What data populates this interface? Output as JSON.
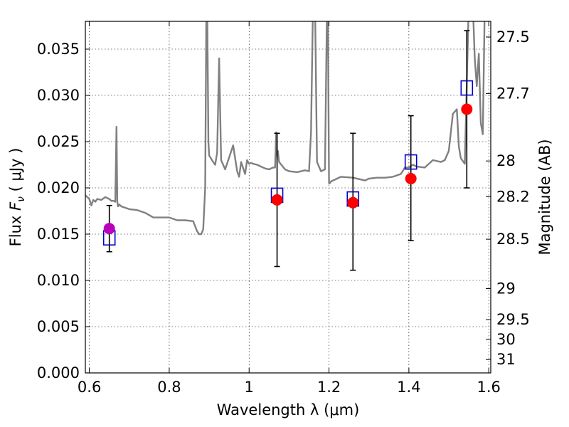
{
  "chart_data": {
    "type": "scatter",
    "xlabel": "Wavelength  λ (μm)",
    "ylabel": "Flux  F_ν  ( μJy )",
    "ylabel_parts": {
      "pre": "Flux  ",
      "sym": "F",
      "sub": "ν",
      "post": "  ( μJy )"
    },
    "y2label": "Magnitude (AB)",
    "xlim": [
      0.59,
      1.605
    ],
    "ylim": [
      0.0,
      0.038
    ],
    "grid": true,
    "x_ticks": [
      {
        "value": 0.6,
        "label": "0.6"
      },
      {
        "value": 0.8,
        "label": "0.8"
      },
      {
        "value": 1.0,
        "label": "1"
      },
      {
        "value": 1.2,
        "label": "1.2"
      },
      {
        "value": 1.4,
        "label": "1.4"
      },
      {
        "value": 1.6,
        "label": "1.6"
      }
    ],
    "y_ticks": [
      {
        "value": 0.0,
        "label": "0.000"
      },
      {
        "value": 0.005,
        "label": "0.005"
      },
      {
        "value": 0.01,
        "label": "0.010"
      },
      {
        "value": 0.015,
        "label": "0.015"
      },
      {
        "value": 0.02,
        "label": "0.020"
      },
      {
        "value": 0.025,
        "label": "0.025"
      },
      {
        "value": 0.03,
        "label": "0.030"
      },
      {
        "value": 0.035,
        "label": "0.035"
      }
    ],
    "y2_ticks": [
      {
        "mag": 27.5,
        "label": "27.5"
      },
      {
        "mag": 27.7,
        "label": "27.7"
      },
      {
        "mag": 28.0,
        "label": "28"
      },
      {
        "mag": 28.2,
        "label": "28.2"
      },
      {
        "mag": 28.5,
        "label": "28.5"
      },
      {
        "mag": 29.0,
        "label": "29"
      },
      {
        "mag": 29.5,
        "label": "29.5"
      },
      {
        "mag": 30.0,
        "label": "30"
      },
      {
        "mag": 31.0,
        "label": "31"
      }
    ],
    "spectrum": {
      "color": "#808080",
      "x": [
        0.59,
        0.6,
        0.605,
        0.61,
        0.615,
        0.62,
        0.63,
        0.64,
        0.65,
        0.655,
        0.66,
        0.665,
        0.668,
        0.67,
        0.672,
        0.675,
        0.68,
        0.7,
        0.72,
        0.74,
        0.76,
        0.78,
        0.8,
        0.82,
        0.84,
        0.86,
        0.87,
        0.875,
        0.88,
        0.885,
        0.89,
        0.893,
        0.895,
        0.898,
        0.9,
        0.91,
        0.915,
        0.92,
        0.925,
        0.93,
        0.94,
        0.96,
        0.97,
        0.975,
        0.98,
        0.99,
        0.995,
        1.0,
        1.005,
        1.01,
        1.02,
        1.03,
        1.04,
        1.05,
        1.06,
        1.065,
        1.068,
        1.07,
        1.072,
        1.075,
        1.09,
        1.1,
        1.12,
        1.14,
        1.15,
        1.155,
        1.16,
        1.165,
        1.17,
        1.18,
        1.19,
        1.195,
        1.197,
        1.2,
        1.202,
        1.205,
        1.21,
        1.23,
        1.26,
        1.29,
        1.3,
        1.32,
        1.34,
        1.36,
        1.38,
        1.39,
        1.4,
        1.41,
        1.42,
        1.44,
        1.46,
        1.48,
        1.49,
        1.5,
        1.51,
        1.52,
        1.525,
        1.53,
        1.54,
        1.55,
        1.555,
        1.56,
        1.565,
        1.57,
        1.575,
        1.58,
        1.585,
        1.59,
        1.595,
        1.6,
        1.605
      ],
      "y": [
        0.0192,
        0.0188,
        0.0181,
        0.0187,
        0.0185,
        0.0188,
        0.0187,
        0.019,
        0.0188,
        0.0186,
        0.0186,
        0.0185,
        0.0266,
        0.0185,
        0.018,
        0.0182,
        0.018,
        0.0177,
        0.0176,
        0.0173,
        0.0168,
        0.0168,
        0.0168,
        0.0165,
        0.0165,
        0.0164,
        0.0153,
        0.015,
        0.015,
        0.0155,
        0.02,
        0.04,
        0.04,
        0.025,
        0.0235,
        0.0228,
        0.0225,
        0.0238,
        0.034,
        0.023,
        0.022,
        0.0246,
        0.0218,
        0.0212,
        0.0228,
        0.0215,
        0.023,
        0.0226,
        0.0227,
        0.0226,
        0.0225,
        0.0223,
        0.0221,
        0.022,
        0.0222,
        0.0222,
        0.026,
        0.0235,
        0.024,
        0.0228,
        0.022,
        0.0218,
        0.0217,
        0.0219,
        0.0218,
        0.026,
        0.04,
        0.04,
        0.0228,
        0.0218,
        0.022,
        0.04,
        0.04,
        0.0205,
        0.0205,
        0.0207,
        0.0208,
        0.0212,
        0.0211,
        0.0208,
        0.021,
        0.0211,
        0.0211,
        0.0212,
        0.0215,
        0.0222,
        0.0222,
        0.0225,
        0.0223,
        0.0222,
        0.023,
        0.0228,
        0.023,
        0.024,
        0.028,
        0.0285,
        0.0245,
        0.0232,
        0.0226,
        0.04,
        0.04,
        0.04,
        0.034,
        0.031,
        0.0345,
        0.027,
        0.0258,
        0.04,
        0.04,
        0.04,
        0.04
      ]
    },
    "observed": {
      "color": "#ff0000",
      "points": [
        {
          "x": 1.07,
          "y": 0.0187,
          "yerr_low": 0.0115,
          "yerr_high": 0.0259
        },
        {
          "x": 1.26,
          "y": 0.0184,
          "yerr_low": 0.0111,
          "yerr_high": 0.0259
        },
        {
          "x": 1.405,
          "y": 0.021,
          "yerr_low": 0.0143,
          "yerr_high": 0.0278
        },
        {
          "x": 1.545,
          "y": 0.0285,
          "yerr_low": 0.02,
          "yerr_high": 0.037
        }
      ]
    },
    "observed_optical": {
      "color": "#bb00bb",
      "points": [
        {
          "x": 0.65,
          "y": 0.0156,
          "yerr_low": 0.0131,
          "yerr_high": 0.0181
        }
      ]
    },
    "model": {
      "color": "#0000cc",
      "points": [
        {
          "x": 0.65,
          "y": 0.0146
        },
        {
          "x": 1.07,
          "y": 0.0192
        },
        {
          "x": 1.26,
          "y": 0.0188
        },
        {
          "x": 1.405,
          "y": 0.0228
        },
        {
          "x": 1.545,
          "y": 0.0308
        }
      ]
    }
  }
}
